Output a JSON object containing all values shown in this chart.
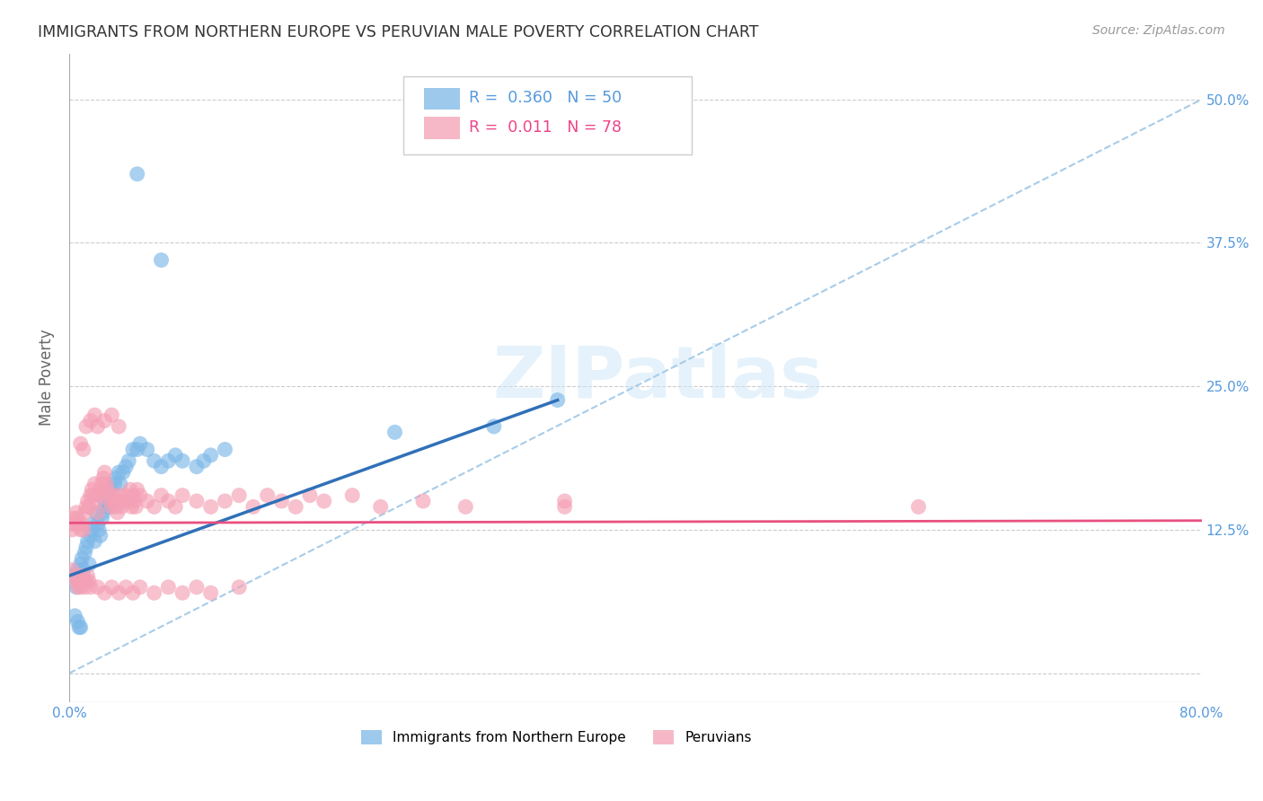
{
  "title": "IMMIGRANTS FROM NORTHERN EUROPE VS PERUVIAN MALE POVERTY CORRELATION CHART",
  "source": "Source: ZipAtlas.com",
  "ylabel": "Male Poverty",
  "xlim": [
    0.0,
    0.8
  ],
  "ylim": [
    -0.025,
    0.54
  ],
  "yticks": [
    0.0,
    0.125,
    0.25,
    0.375,
    0.5
  ],
  "ytick_labels": [
    "",
    "12.5%",
    "25.0%",
    "37.5%",
    "50.0%"
  ],
  "xticks": [
    0.0,
    0.2,
    0.4,
    0.6,
    0.8
  ],
  "xtick_labels": [
    "0.0%",
    "",
    "",
    "",
    "80.0%"
  ],
  "watermark": "ZIPatlas",
  "blue_color": "#7db8e8",
  "pink_color": "#f4a0b5",
  "trend_blue_color": "#3070b8",
  "trend_pink_color": "#e85080",
  "trend_dashed_color": "#a8cce8",
  "bg_color": "#ffffff",
  "grid_color": "#cccccc",
  "axis_label_color": "#5599dd",
  "blue_line_x0": 0.0,
  "blue_line_y0": 0.085,
  "blue_line_x1": 0.345,
  "blue_line_y1": 0.238,
  "pink_line_x0": 0.0,
  "pink_line_y0": 0.131,
  "pink_line_x1": 0.8,
  "pink_line_y1": 0.133,
  "dashed_line_x0": 0.0,
  "dashed_line_y0": 0.0,
  "dashed_line_x1": 0.8,
  "dashed_line_y1": 0.5,
  "blue_scatter_x": [
    0.003,
    0.005,
    0.006,
    0.007,
    0.008,
    0.009,
    0.01,
    0.011,
    0.012,
    0.013,
    0.014,
    0.015,
    0.016,
    0.017,
    0.018,
    0.019,
    0.02,
    0.021,
    0.022,
    0.023,
    0.024,
    0.025,
    0.026,
    0.027,
    0.028,
    0.029,
    0.03,
    0.032,
    0.033,
    0.035,
    0.036,
    0.038,
    0.04,
    0.042,
    0.045,
    0.048,
    0.05,
    0.055,
    0.06,
    0.065,
    0.07,
    0.075,
    0.08,
    0.09,
    0.095,
    0.1,
    0.11,
    0.23,
    0.3,
    0.345
  ],
  "blue_scatter_y": [
    0.085,
    0.075,
    0.09,
    0.08,
    0.095,
    0.1,
    0.09,
    0.105,
    0.11,
    0.115,
    0.095,
    0.12,
    0.125,
    0.13,
    0.115,
    0.14,
    0.13,
    0.125,
    0.12,
    0.135,
    0.14,
    0.15,
    0.145,
    0.155,
    0.145,
    0.16,
    0.15,
    0.165,
    0.17,
    0.175,
    0.165,
    0.175,
    0.18,
    0.185,
    0.195,
    0.195,
    0.2,
    0.195,
    0.185,
    0.18,
    0.185,
    0.19,
    0.185,
    0.18,
    0.185,
    0.19,
    0.195,
    0.21,
    0.215,
    0.238
  ],
  "blue_scatter_outlier_x": [
    0.048,
    0.065,
    0.004,
    0.006,
    0.007,
    0.008
  ],
  "blue_scatter_outlier_y": [
    0.435,
    0.36,
    0.05,
    0.045,
    0.04,
    0.04
  ],
  "pink_scatter_x": [
    0.001,
    0.002,
    0.003,
    0.004,
    0.005,
    0.006,
    0.007,
    0.008,
    0.009,
    0.01,
    0.011,
    0.012,
    0.013,
    0.014,
    0.015,
    0.016,
    0.017,
    0.018,
    0.019,
    0.02,
    0.021,
    0.022,
    0.023,
    0.024,
    0.025,
    0.026,
    0.027,
    0.028,
    0.029,
    0.03,
    0.031,
    0.032,
    0.033,
    0.034,
    0.035,
    0.036,
    0.037,
    0.038,
    0.04,
    0.042,
    0.043,
    0.044,
    0.045,
    0.046,
    0.047,
    0.048,
    0.05,
    0.055,
    0.06,
    0.065,
    0.07,
    0.075,
    0.08,
    0.09,
    0.1,
    0.11,
    0.12,
    0.13,
    0.14,
    0.15,
    0.16,
    0.17,
    0.18,
    0.2,
    0.22,
    0.25,
    0.28,
    0.35,
    0.6,
    0.008,
    0.01,
    0.012,
    0.015,
    0.018,
    0.02,
    0.025,
    0.03,
    0.035
  ],
  "pink_scatter_y": [
    0.13,
    0.125,
    0.135,
    0.13,
    0.14,
    0.135,
    0.13,
    0.125,
    0.13,
    0.125,
    0.14,
    0.145,
    0.15,
    0.145,
    0.155,
    0.16,
    0.155,
    0.165,
    0.15,
    0.14,
    0.155,
    0.16,
    0.165,
    0.17,
    0.175,
    0.165,
    0.16,
    0.155,
    0.15,
    0.145,
    0.155,
    0.15,
    0.145,
    0.14,
    0.15,
    0.155,
    0.145,
    0.15,
    0.155,
    0.15,
    0.16,
    0.145,
    0.155,
    0.15,
    0.145,
    0.16,
    0.155,
    0.15,
    0.145,
    0.155,
    0.15,
    0.145,
    0.155,
    0.15,
    0.145,
    0.15,
    0.155,
    0.145,
    0.155,
    0.15,
    0.145,
    0.155,
    0.15,
    0.155,
    0.145,
    0.15,
    0.145,
    0.15,
    0.145,
    0.2,
    0.195,
    0.215,
    0.22,
    0.225,
    0.215,
    0.22,
    0.225,
    0.215
  ],
  "pink_scatter_outlier_x": [
    0.002,
    0.004,
    0.005,
    0.006,
    0.007,
    0.008,
    0.009,
    0.01,
    0.011,
    0.012,
    0.013,
    0.014,
    0.015,
    0.02,
    0.025,
    0.03,
    0.035,
    0.04,
    0.045,
    0.05,
    0.06,
    0.07,
    0.08,
    0.09,
    0.1,
    0.12,
    0.35
  ],
  "pink_scatter_outlier_y": [
    0.09,
    0.085,
    0.08,
    0.075,
    0.08,
    0.075,
    0.085,
    0.08,
    0.075,
    0.08,
    0.085,
    0.08,
    0.075,
    0.075,
    0.07,
    0.075,
    0.07,
    0.075,
    0.07,
    0.075,
    0.07,
    0.075,
    0.07,
    0.075,
    0.07,
    0.075,
    0.145
  ]
}
